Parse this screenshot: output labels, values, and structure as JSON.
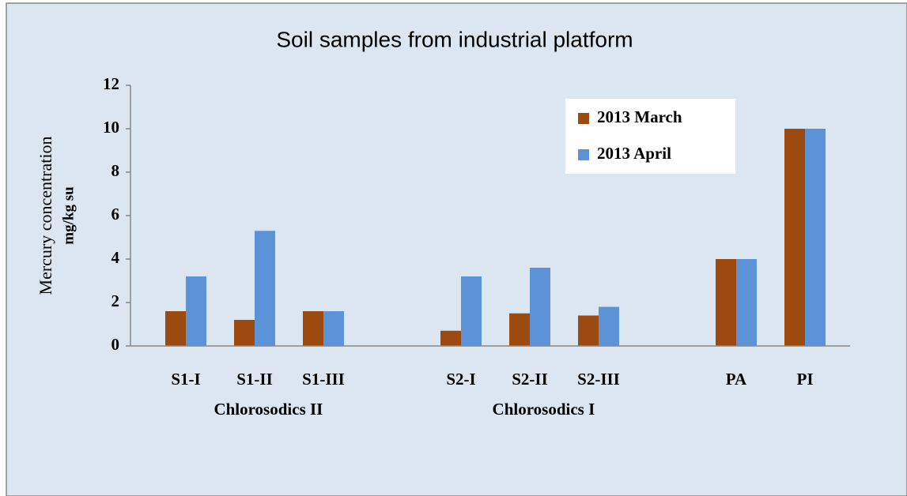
{
  "chart_data": {
    "type": "bar",
    "title": "Soil samples from industrial platform",
    "ylabel": [
      "Mercury concentration",
      "mg/kg su"
    ],
    "categories": [
      "S1-I",
      "S1-II",
      "S1-III",
      null,
      "S2-I",
      "S2-II",
      "S2-III",
      null,
      "PA",
      "PI"
    ],
    "series": [
      {
        "name": "2013 March",
        "color": "#9c4a0f",
        "values": [
          1.6,
          1.2,
          1.6,
          null,
          0.7,
          1.5,
          1.4,
          null,
          4.0,
          10.0
        ]
      },
      {
        "name": "2013 April",
        "color": "#5b93d6",
        "values": [
          3.2,
          5.3,
          1.6,
          null,
          3.2,
          3.6,
          1.8,
          null,
          4.0,
          10.0
        ]
      }
    ],
    "annotations": [
      "Chlorosodics II",
      "Chlorosodics I"
    ],
    "ylim": [
      0,
      12
    ],
    "yticks": [
      0,
      2,
      4,
      6,
      8,
      10,
      12
    ],
    "grid": false,
    "legend": "upper right"
  }
}
